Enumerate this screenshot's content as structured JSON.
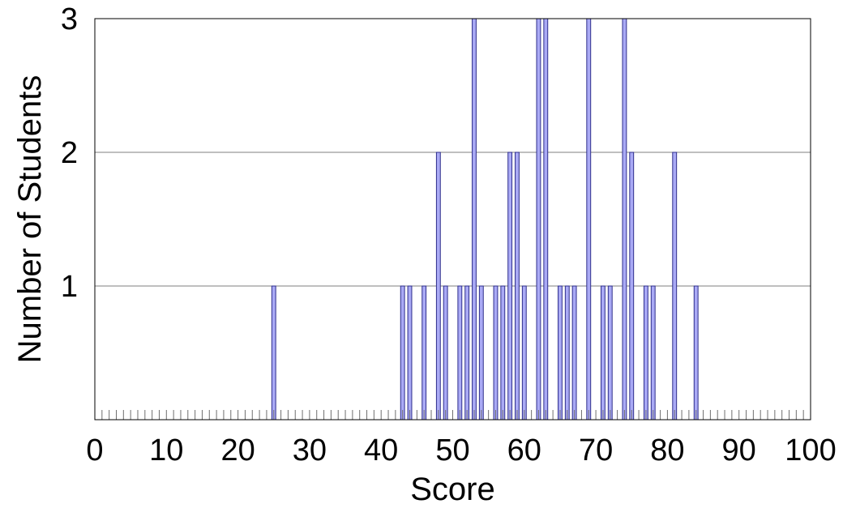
{
  "chart_data": {
    "type": "bar",
    "title": "",
    "xlabel": "Score",
    "ylabel": "Number of Students",
    "xlim": [
      0,
      100
    ],
    "ylim": [
      0,
      3
    ],
    "x_ticks": [
      0,
      10,
      20,
      30,
      40,
      50,
      60,
      70,
      80,
      90,
      100
    ],
    "y_ticks": [
      1,
      2,
      3
    ],
    "grid": "horizontal",
    "legend": "none",
    "bar_color": "#aaaaf5",
    "bar_edge_color": "#2e2e8c",
    "x": [
      25,
      43,
      44,
      46,
      48,
      49,
      51,
      52,
      53,
      54,
      56,
      57,
      58,
      59,
      60,
      62,
      63,
      65,
      66,
      67,
      69,
      71,
      72,
      74,
      75,
      77,
      78,
      81,
      84
    ],
    "values": [
      1,
      1,
      1,
      1,
      2,
      1,
      1,
      1,
      3,
      1,
      1,
      1,
      2,
      2,
      1,
      3,
      3,
      1,
      1,
      1,
      3,
      1,
      1,
      3,
      2,
      1,
      1,
      2,
      1
    ]
  }
}
